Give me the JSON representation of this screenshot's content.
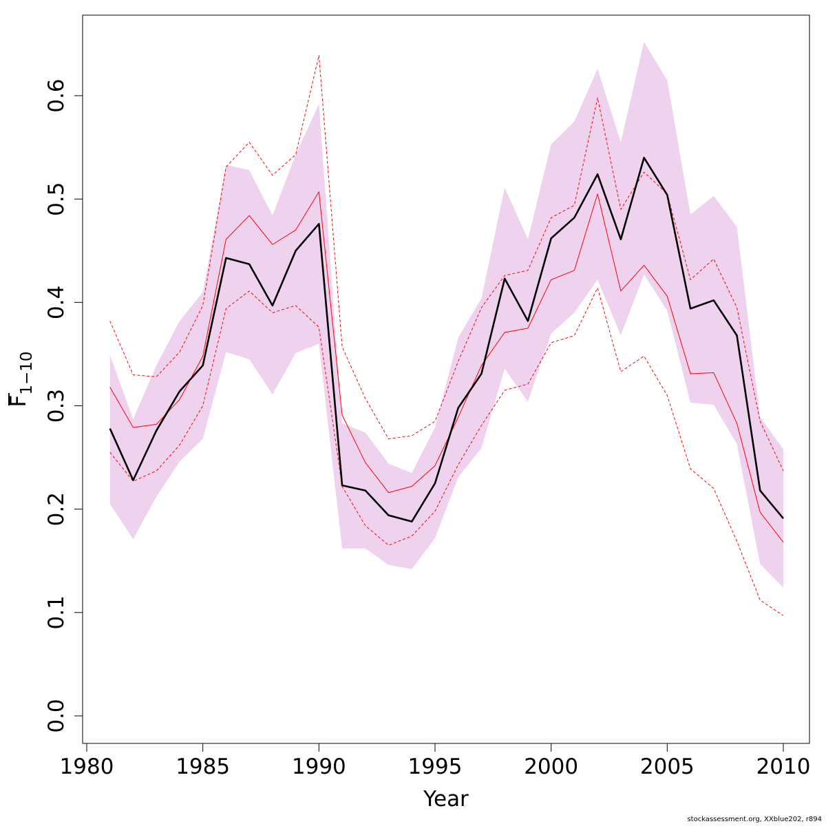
{
  "chart_data": {
    "type": "line",
    "xlabel": "Year",
    "ylabel": {
      "base": "F",
      "subscript": "1−10"
    },
    "xlim": [
      1980,
      2010
    ],
    "ylim": [
      0.0,
      0.65
    ],
    "xticks": [
      "1980",
      "1985",
      "1990",
      "1995",
      "2000",
      "2005",
      "2010"
    ],
    "yticks": [
      "0.0",
      "0.1",
      "0.2",
      "0.3",
      "0.4",
      "0.5",
      "0.6"
    ],
    "grid": false,
    "x": [
      1981,
      1982,
      1983,
      1984,
      1985,
      1986,
      1987,
      1988,
      1989,
      1990,
      1991,
      1992,
      1993,
      1994,
      1995,
      1996,
      1997,
      1998,
      1999,
      2000,
      2001,
      2002,
      2003,
      2004,
      2005,
      2006,
      2007,
      2008,
      2009,
      2010
    ],
    "band": {
      "color": "#eed2ee",
      "upper": [
        0.349,
        0.287,
        0.339,
        0.382,
        0.41,
        0.533,
        0.528,
        0.484,
        0.543,
        0.592,
        0.283,
        0.274,
        0.244,
        0.235,
        0.279,
        0.366,
        0.404,
        0.511,
        0.461,
        0.553,
        0.575,
        0.626,
        0.555,
        0.652,
        0.615,
        0.485,
        0.503,
        0.473,
        0.289,
        0.258
      ],
      "lower": [
        0.205,
        0.171,
        0.212,
        0.246,
        0.268,
        0.352,
        0.345,
        0.311,
        0.351,
        0.36,
        0.162,
        0.162,
        0.146,
        0.142,
        0.172,
        0.231,
        0.259,
        0.336,
        0.304,
        0.37,
        0.39,
        0.422,
        0.368,
        0.427,
        0.392,
        0.303,
        0.301,
        0.263,
        0.147,
        0.124
      ]
    },
    "series": [
      {
        "style": "bold-solid",
        "color": "#000000",
        "values": [
          0.278,
          0.228,
          0.276,
          0.314,
          0.339,
          0.443,
          0.437,
          0.397,
          0.45,
          0.476,
          0.223,
          0.218,
          0.194,
          0.188,
          0.225,
          0.298,
          0.331,
          0.423,
          0.382,
          0.462,
          0.482,
          0.524,
          0.461,
          0.54,
          0.504,
          0.394,
          0.402,
          0.368,
          0.218,
          0.191
        ]
      },
      {
        "style": "thin-solid",
        "color": "#ff0000",
        "values": [
          0.318,
          0.279,
          0.282,
          0.306,
          0.348,
          0.461,
          0.484,
          0.456,
          0.47,
          0.507,
          0.291,
          0.245,
          0.216,
          0.222,
          0.242,
          0.289,
          0.339,
          0.371,
          0.375,
          0.422,
          0.431,
          0.505,
          0.411,
          0.436,
          0.406,
          0.331,
          0.332,
          0.283,
          0.197,
          0.168
        ]
      },
      {
        "style": "thin-dashed",
        "color": "#ff0000",
        "values": [
          0.382,
          0.33,
          0.328,
          0.352,
          0.397,
          0.531,
          0.555,
          0.523,
          0.543,
          0.639,
          0.357,
          0.307,
          0.268,
          0.271,
          0.285,
          0.343,
          0.395,
          0.426,
          0.431,
          0.482,
          0.494,
          0.598,
          0.49,
          0.526,
          0.505,
          0.422,
          0.442,
          0.395,
          0.285,
          0.237
        ]
      },
      {
        "style": "thin-dashed",
        "color": "#ff0000",
        "values": [
          0.255,
          0.227,
          0.237,
          0.262,
          0.3,
          0.394,
          0.411,
          0.39,
          0.397,
          0.376,
          0.222,
          0.184,
          0.165,
          0.174,
          0.198,
          0.243,
          0.281,
          0.315,
          0.321,
          0.361,
          0.368,
          0.414,
          0.333,
          0.348,
          0.31,
          0.239,
          0.22,
          0.169,
          0.112,
          0.097
        ]
      }
    ]
  },
  "footer_text": "stockassessment.org, XXblue202, r894"
}
